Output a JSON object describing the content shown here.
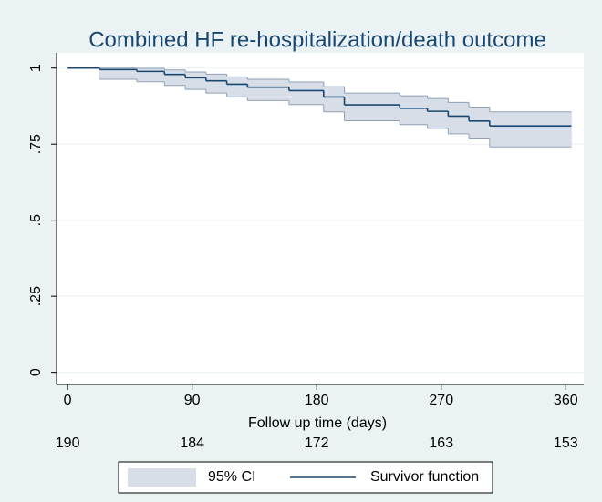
{
  "chart_data": {
    "type": "step",
    "title": "Combined HF re-hospitalization/death outcome",
    "x_label": "Follow up time (days)",
    "x": [
      0,
      23,
      50,
      70,
      85,
      100,
      115,
      130,
      160,
      185,
      200,
      240,
      260,
      275,
      290,
      305,
      364
    ],
    "series": [
      {
        "name": "95% CI",
        "color": "#d8dee8",
        "line_color": "#8fa0b5",
        "lower": [
          null,
          0.963,
          0.955,
          0.943,
          0.93,
          0.918,
          0.905,
          0.893,
          0.88,
          0.856,
          0.827,
          0.814,
          0.802,
          0.784,
          0.767,
          0.741,
          0.741
        ],
        "upper": [
          null,
          1.0,
          0.999,
          0.994,
          0.987,
          0.98,
          0.971,
          0.963,
          0.954,
          0.939,
          0.918,
          0.909,
          0.9,
          0.887,
          0.872,
          0.856,
          0.856
        ]
      },
      {
        "name": "Survivor function",
        "color": "#1a476f",
        "values": [
          1.0,
          0.995,
          0.989,
          0.979,
          0.968,
          0.958,
          0.947,
          0.937,
          0.926,
          0.905,
          0.879,
          0.868,
          0.858,
          0.842,
          0.826,
          0.81,
          0.81
        ]
      }
    ],
    "xlim": [
      -8,
      373
    ],
    "xticks": [
      0,
      90,
      180,
      270,
      360
    ],
    "ylim": [
      -0.04,
      1.05
    ],
    "yticks": [
      0,
      {
        "value": 0.25,
        "label": ".25"
      },
      {
        "value": 0.5,
        "label": ".5"
      },
      {
        "value": 0.75,
        "label": ".75"
      },
      1
    ],
    "grid": true,
    "at_risk": {
      "x": [
        0,
        90,
        180,
        270,
        360
      ],
      "values": [
        190,
        184,
        172,
        163,
        153
      ]
    },
    "legend": "bottom"
  }
}
